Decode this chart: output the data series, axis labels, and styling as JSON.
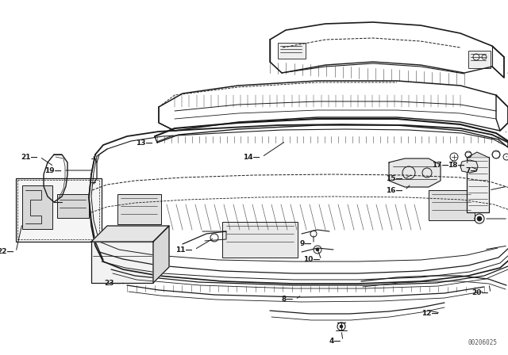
{
  "background_color": "#ffffff",
  "line_color": "#1a1a1a",
  "fig_width": 6.4,
  "fig_height": 4.48,
  "dpi": 100,
  "watermark": "00206025",
  "label_fontsize": 6.0,
  "label_bold_fontsize": 7.5
}
